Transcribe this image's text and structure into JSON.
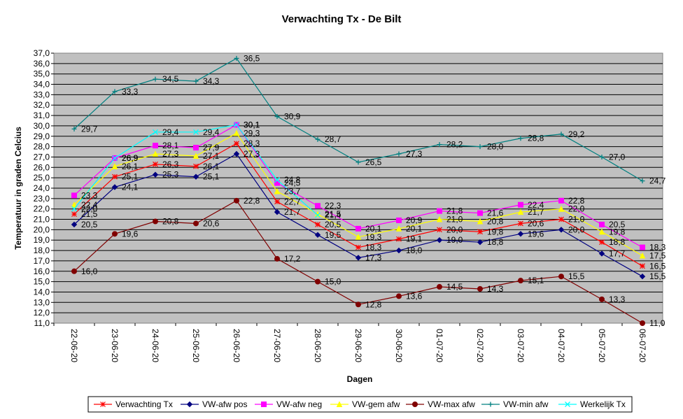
{
  "chart_data": {
    "type": "line",
    "title": "Verwachting Tx - De Bilt",
    "xlabel": "Dagen",
    "ylabel": "Temperatuur in graden Celcius",
    "ylim": [
      11.0,
      37.0
    ],
    "ytick_step": 1.0,
    "grid": true,
    "legend_position": "bottom",
    "plot_background": "#c0c0c0",
    "categories": [
      "22-06-20",
      "23-06-20",
      "24-06-20",
      "25-06-20",
      "26-06-20",
      "27-06-20",
      "28-06-20",
      "29-06-20",
      "30-06-20",
      "01-07-20",
      "02-07-20",
      "03-07-20",
      "04-07-20",
      "05-07-20",
      "06-07-20"
    ],
    "series": [
      {
        "name": "Verwachting Tx",
        "color": "#ff0000",
        "marker": "star",
        "values": [
          21.5,
          25.1,
          26.3,
          26.1,
          28.3,
          22.7,
          20.5,
          18.3,
          19.1,
          20.0,
          19.8,
          20.6,
          21.0,
          18.8,
          16.5
        ]
      },
      {
        "name": "VW-afw pos",
        "color": "#000080",
        "marker": "diamond",
        "values": [
          20.5,
          24.1,
          25.3,
          25.1,
          27.3,
          21.7,
          19.5,
          17.3,
          18.0,
          19.0,
          18.8,
          19.6,
          20.0,
          17.7,
          15.5
        ]
      },
      {
        "name": "VW-afw neg",
        "color": "#ff00ff",
        "marker": "square",
        "values": [
          23.3,
          26.9,
          28.1,
          27.9,
          30.1,
          24.5,
          22.3,
          20.1,
          20.9,
          21.8,
          21.6,
          22.4,
          22.8,
          20.5,
          18.3
        ]
      },
      {
        "name": "VW-gem afw",
        "color": "#ffff00",
        "marker": "triangle",
        "values": [
          22.4,
          26.1,
          27.3,
          27.1,
          29.3,
          23.7,
          21.5,
          19.3,
          20.1,
          21.0,
          20.8,
          21.7,
          22.0,
          19.8,
          17.5
        ]
      },
      {
        "name": "VW-max afw",
        "color": "#800000",
        "marker": "circle",
        "values": [
          16.0,
          19.6,
          20.8,
          20.6,
          22.8,
          17.2,
          15.0,
          12.8,
          13.6,
          14.5,
          14.3,
          15.1,
          15.5,
          13.3,
          11.0
        ]
      },
      {
        "name": "VW-min afw",
        "color": "#008080",
        "marker": "plus",
        "values": [
          29.7,
          33.3,
          34.5,
          34.3,
          36.5,
          30.9,
          28.7,
          26.5,
          27.3,
          28.2,
          28.0,
          28.8,
          29.2,
          27.0,
          24.7
        ]
      },
      {
        "name": "Werkelijk Tx",
        "color": "#00ffff",
        "marker": "x",
        "values": [
          22.0,
          26.9,
          29.4,
          29.4,
          30.1,
          24.8,
          21.4,
          null,
          null,
          null,
          null,
          null,
          null,
          null,
          null
        ]
      }
    ]
  }
}
